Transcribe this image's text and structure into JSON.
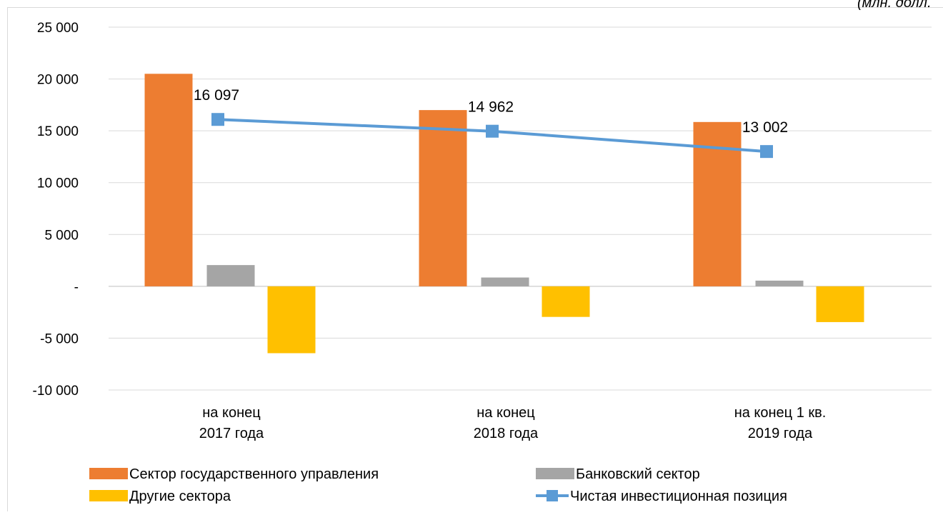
{
  "chart_data": {
    "type": "bar",
    "unit_note": "(млн. долл.",
    "categories": [
      [
        "на конец",
        "2017 года"
      ],
      [
        "на конец",
        "2018 года"
      ],
      [
        "на конец 1 кв.",
        "2019 года"
      ]
    ],
    "ylim": [
      -10000,
      25000
    ],
    "yticks": [
      {
        "value": 25000,
        "label": "25 000"
      },
      {
        "value": 20000,
        "label": "20 000"
      },
      {
        "value": 15000,
        "label": "15 000"
      },
      {
        "value": 10000,
        "label": "10 000"
      },
      {
        "value": 5000,
        "label": "5 000"
      },
      {
        "value": 0,
        "label": "-"
      },
      {
        "value": -5000,
        "label": "-5 000"
      },
      {
        "value": -10000,
        "label": "-10 000"
      }
    ],
    "grid": true,
    "legend_position": "bottom",
    "series": [
      {
        "name": "Сектор государственного управления",
        "kind": "bar",
        "color": "#ed7d31",
        "values": [
          20500,
          17000,
          15850
        ]
      },
      {
        "name": "Банковский сектор",
        "kind": "bar",
        "color": "#a5a5a5",
        "values": [
          2050,
          850,
          550
        ]
      },
      {
        "name": "Другие сектора",
        "kind": "bar",
        "color": "#ffc000",
        "values": [
          -6450,
          -2950,
          -3450
        ]
      },
      {
        "name": "Чистая инвестиционная  позиция",
        "kind": "line",
        "color": "#5b9bd5",
        "values": [
          16097,
          14962,
          13002
        ],
        "labels": [
          "16 097",
          "14 962",
          "13 002"
        ]
      }
    ]
  }
}
